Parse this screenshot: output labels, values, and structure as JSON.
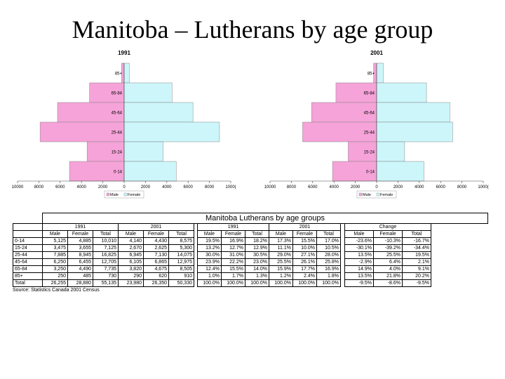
{
  "title": "Manitoba – Lutherans by age group",
  "chart_data": [
    {
      "type": "bar",
      "orientation": "horizontal-pyramid",
      "title": "1991",
      "categories": [
        "85+",
        "65-84",
        "45-64",
        "25-44",
        "15-24",
        "0-14"
      ],
      "series": [
        {
          "name": "Male",
          "values": [
            250,
            3250,
            6250,
            7885,
            3475,
            5125
          ]
        },
        {
          "name": "Female",
          "values": [
            485,
            4490,
            6455,
            8945,
            3655,
            4885
          ]
        }
      ],
      "x_ticks": [
        "10000",
        "8000",
        "6000",
        "4000",
        "2000",
        "0",
        "2000",
        "4000",
        "6000",
        "8000",
        "1000("
      ],
      "xlim": [
        -10000,
        10000
      ],
      "colors": {
        "Male": "#f5a3d8",
        "Female": "#ccf6fa"
      },
      "legend": "bottom"
    },
    {
      "type": "bar",
      "orientation": "horizontal-pyramid",
      "title": "2001",
      "categories": [
        "85+",
        "65-84",
        "45-64",
        "25-44",
        "15-24",
        "0-14"
      ],
      "series": [
        {
          "name": "Male",
          "values": [
            290,
            3820,
            6105,
            6945,
            2670,
            4140
          ]
        },
        {
          "name": "Female",
          "values": [
            620,
            4675,
            6865,
            7130,
            2625,
            4430
          ]
        }
      ],
      "x_ticks": [
        "10000",
        "8000",
        "6000",
        "4000",
        "2000",
        "0",
        "2000",
        "4000",
        "6000",
        "8000",
        "1000("
      ],
      "xlim": [
        -10000,
        10000
      ],
      "colors": {
        "Male": "#f5a3d8",
        "Female": "#ccf6fa"
      },
      "legend": "bottom"
    },
    {
      "type": "table",
      "title": "Manitoba Lutherans by age groups",
      "group_headers": [
        "1991",
        "2001",
        "1991",
        "2001",
        "Change"
      ],
      "column_headers": [
        "Male",
        "Female",
        "Total",
        "Male",
        "Female",
        "Total",
        "Male",
        "Female",
        "Total",
        "Male",
        "Female",
        "Total",
        "Male",
        "Female",
        "Total"
      ],
      "rows": [
        {
          "label": "0-14",
          "cells": [
            "5,125",
            "4,885",
            "10,010",
            "4,140",
            "4,430",
            "8,575",
            "19.5%",
            "16.9%",
            "18.2%",
            "17.3%",
            "15.5%",
            "17.0%",
            "-23.6%",
            "-10.3%",
            "-16.7%"
          ]
        },
        {
          "label": "15-24",
          "cells": [
            "3,475",
            "3,655",
            "7,125",
            "2,670",
            "2,625",
            "5,300",
            "13.2%",
            "12.7%",
            "12.9%",
            "11.1%",
            "10.0%",
            "10.5%",
            "-30.1%",
            "-39.2%",
            "-34.4%"
          ]
        },
        {
          "label": "25-44",
          "cells": [
            "7,885",
            "8,945",
            "16,825",
            "6,945",
            "7,130",
            "14,075",
            "30.0%",
            "31.0%",
            "30.5%",
            "29.0%",
            "27.1%",
            "28.0%",
            "13.5%",
            "25.5%",
            "19.5%"
          ]
        },
        {
          "label": "45-64",
          "cells": [
            "6,250",
            "6,455",
            "12,705",
            "6,105",
            "6,865",
            "12,975",
            "23.9%",
            "22.2%",
            "23.0%",
            "25.5%",
            "26.1%",
            "25.8%",
            "-2.9%",
            "6.4%",
            "2.1%"
          ]
        },
        {
          "label": "65-84",
          "cells": [
            "3,250",
            "4,490",
            "7,735",
            "3,820",
            "4,675",
            "8,505",
            "12.4%",
            "15.5%",
            "14.0%",
            "15.9%",
            "17.7%",
            "16.9%",
            "14.9%",
            "4.0%",
            "9.1%"
          ]
        },
        {
          "label": "85+",
          "cells": [
            "250",
            "485",
            "730",
            "290",
            "620",
            "910",
            "1.0%",
            "1.7%",
            "1.3%",
            "1.2%",
            "2.4%",
            "1.8%",
            "13.5%",
            "21.8%",
            "20.2%"
          ]
        },
        {
          "label": "Total",
          "cells": [
            "26,255",
            "28,880",
            "55,135",
            "23,980",
            "26,350",
            "50,330",
            "100.0%",
            "100.0%",
            "100.0%",
            "100.0%",
            "100.0%",
            "100.0%",
            "-9.5%",
            "-8.6%",
            "-9.5%"
          ]
        }
      ],
      "source": "Source: Statistics Canada 2001 Census"
    }
  ]
}
